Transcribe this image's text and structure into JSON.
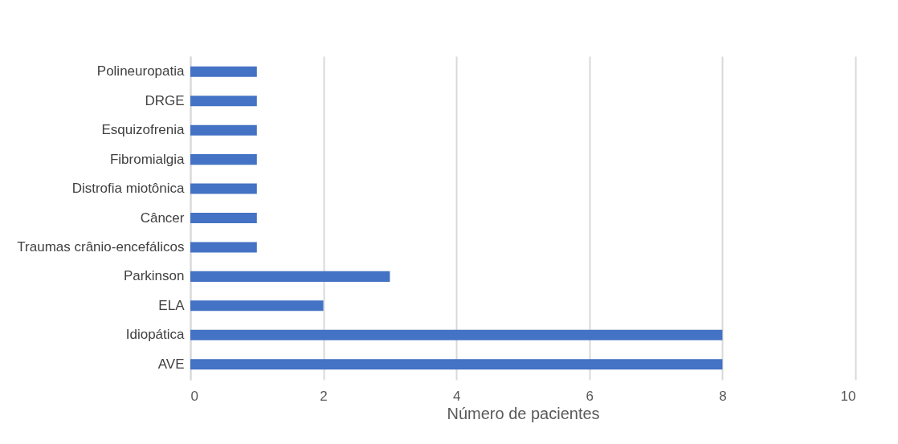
{
  "chart_data": {
    "type": "bar",
    "orientation": "horizontal",
    "xlabel": "Número de pacientes",
    "categories": [
      "Polineuropatia",
      "DRGE",
      "Esquizofrenia",
      "Fibromialgia",
      "Distrofia miotônica",
      "Câncer",
      "Traumas crânio-encefálicos",
      "Parkinson",
      "ELA",
      "Idiopática",
      "AVE"
    ],
    "values": [
      1,
      1,
      1,
      1,
      1,
      1,
      1,
      3,
      2,
      8,
      8
    ],
    "color": "#4472c4",
    "xlim": [
      0,
      10
    ],
    "xticks": [
      0,
      2,
      4,
      6,
      8,
      10
    ],
    "grid": "x"
  }
}
